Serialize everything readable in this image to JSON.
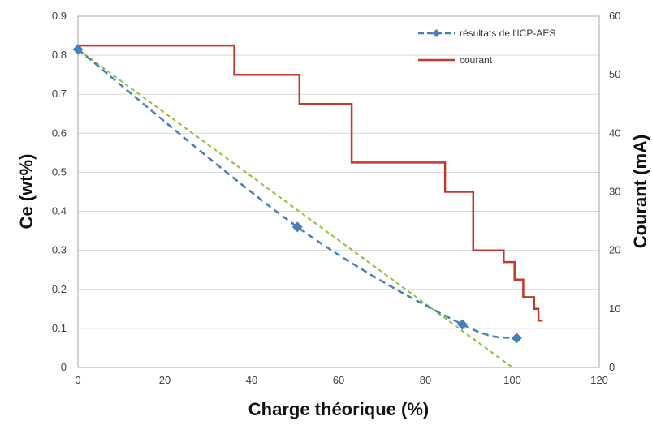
{
  "chart_data": {
    "type": "line",
    "xlabel": "Charge théorique (%)",
    "ylabel_left": "Ce (wt%)",
    "ylabel_right": "Courant (mA)",
    "xlim": [
      0,
      120
    ],
    "ylim_left": [
      0,
      0.9
    ],
    "ylim_right": [
      0,
      60
    ],
    "x_ticks": [
      "0",
      "20",
      "40",
      "60",
      "80",
      "100",
      "120"
    ],
    "y_left_ticks": [
      "0",
      "0.1",
      "0.2",
      "0.3",
      "0.4",
      "0.5",
      "0.6",
      "0.7",
      "0.8",
      "0.9"
    ],
    "y_right_ticks": [
      "0",
      "10",
      "20",
      "30",
      "40",
      "50",
      "60"
    ],
    "grid": true,
    "legend_position": "top-right",
    "colors": {
      "icp": "#4a7ebb",
      "courant": "#c0392b",
      "trend": "#92c040"
    },
    "series": [
      {
        "name": "résultats de l'ICP-AES",
        "axis": "left",
        "style": "dashed-diamond",
        "x": [
          0,
          50.5,
          88.5,
          101
        ],
        "y": [
          0.815,
          0.36,
          0.11,
          0.075
        ]
      },
      {
        "name": "courant",
        "axis": "right",
        "style": "step",
        "x": [
          0,
          36,
          36,
          51,
          51,
          63,
          63,
          84.5,
          84.5,
          91,
          91,
          98,
          98,
          100.5,
          100.5,
          102.5,
          102.5,
          103.5,
          103.5,
          105,
          105,
          106,
          106,
          107
        ],
        "y": [
          55,
          55,
          50,
          50,
          45,
          45,
          35,
          35,
          30,
          30,
          20,
          20,
          18,
          18,
          15,
          15,
          12,
          12,
          12,
          12,
          10,
          10,
          8,
          8
        ]
      },
      {
        "axis": "left",
        "style": "dashed-trend",
        "x": [
          0,
          100
        ],
        "y": [
          0.815,
          0
        ]
      }
    ]
  }
}
